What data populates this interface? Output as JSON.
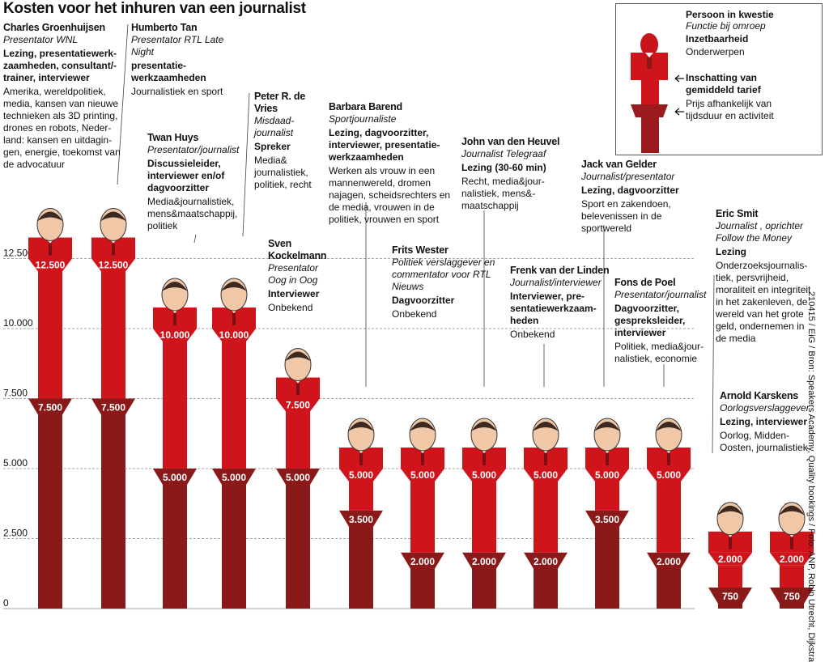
{
  "title": "Kosten voor het inhuren van een journalist",
  "credit": "210415 / EiG / Bron: Speakers Academy, Quality bookings / Foto: ANP, Robin Utrecht, Dijkstra",
  "colors": {
    "max": "#d0141c",
    "min": "#8a1a1a",
    "face": "#f0c8a8"
  },
  "legend": {
    "name": "Persoon in kwestie",
    "func": "Functie bij omroep",
    "avail": "Inzetbaarheid",
    "topics": "Onderwerpen",
    "avg": "Inschatting van gemiddeld tarief",
    "range": "Prijs afhankelijk van tijdsduur en activiteit"
  },
  "people": [
    {
      "name": "Charles Groenhuijsen",
      "func": "Presentator WNL",
      "avail": "Lezing, presentatiewerk­zaamheden, consultant/­trainer, interviewer",
      "topics": "Amerika, wereldpolitiek, media, kansen van nieuwe technieken als 3D printing, drones en robots, Neder­land: kansen en uitdagin­gen, energie, toekomst van de advocatuur"
    },
    {
      "name": "Humberto Tan",
      "func": "Presentator RTL Late Night",
      "avail": "presentatie­werkzaamheden",
      "topics": "Journalistiek en sport"
    },
    {
      "name": "Twan Huys",
      "func": "Presentator/journalist",
      "avail": "Discussieleider, interviewer en/of dagvoorzitter",
      "topics": "Media&journalistiek, mens&maatschap­pij, politiek"
    },
    {
      "name": "Peter R. de Vries",
      "func": "Misdaad­journalist",
      "avail": "Spreker",
      "topics": "Media& journalistiek, politiek, recht"
    },
    {
      "name": "Sven Kockelmann",
      "func": "Presentator Oog in Oog",
      "avail": "Interviewer",
      "topics": "Onbekend"
    },
    {
      "name": "Barbara Barend",
      "func": "Sportjournaliste",
      "avail": "Lezing, dagvoorzitter, interviewer, presentatie­werkzaamheden",
      "topics": "Werken als vrouw in een mannenwereld, dromen najagen, scheidsrechters en de media, vrouwen in de politiek, vrouwen en sport"
    },
    {
      "name": "Frits Wester",
      "func": "Politiek verslaggever en commentator voor RTL Nieuws",
      "avail": "Dagvoorzitter",
      "topics": "Onbekend"
    },
    {
      "name": "John van den Heuvel",
      "func": "Journalist Telegraaf",
      "avail": "Lezing (30-60 min)",
      "topics": "Recht, media&jour­nalistiek, mens&­maatschappij"
    },
    {
      "name": "Frenk van der Linden",
      "func": "Journalist/interviewer",
      "avail": "Interviewer, pre­sentatiewerkzaam­heden",
      "topics": "Onbekend"
    },
    {
      "name": "Jack van Gelder",
      "func": "Journalist/presentator",
      "avail": "Lezing, dagvoorzitter",
      "topics": "Sport en zakendoen, belevenissen in de sportwereld"
    },
    {
      "name": "Fons de Poel",
      "func": "Presentator/journalist",
      "avail": "Dagvoorzitter, gespreksleider, interviewer",
      "topics": "Politiek, media&jour­nalistiek, economie"
    },
    {
      "name": "Eric Smit",
      "func": "Journalist , oprichter Follow the Money",
      "avail": "Lezing",
      "topics": "Onderzoeksjournalis­tiek, persvrijheid, moraliteit en integriteit in het zakenleven, de wereld van het grote geld, ondernemen in de media"
    },
    {
      "name": "Arnold Karskens",
      "func": "Oorlogsverslaggever",
      "avail": "Lezing, interviewer",
      "topics": "Oorlog, Midden-Oosten, journalistiek"
    }
  ],
  "chart_data": {
    "type": "bar",
    "yticks": [
      "12.500",
      "10.000",
      "7.500",
      "5.000",
      "2.500",
      "0"
    ],
    "ylim": [
      0,
      13500
    ],
    "categories": [
      "Charles Groenhuijsen",
      "Humberto Tan",
      "Twan Huys",
      "Peter R. de Vries",
      "Sven Kockelmann",
      "Barbara Barend",
      "Frits Wester",
      "John van den Heuvel",
      "Frenk van der Linden",
      "Jack van Gelder",
      "Fons de Poel",
      "Eric Smit",
      "Arnold Karskens"
    ],
    "max_values": [
      12500,
      12500,
      10000,
      10000,
      7500,
      5000,
      5000,
      5000,
      5000,
      5000,
      5000,
      2000,
      2000
    ],
    "max_labels": [
      "12.500",
      "12.500",
      "10.000",
      "10.000",
      "7.500",
      "5.000",
      "5.000",
      "5.000",
      "5.000",
      "5.000",
      "5.000",
      "2.000",
      "2.000"
    ],
    "min_values": [
      7500,
      7500,
      5000,
      5000,
      5000,
      3500,
      2000,
      2000,
      2000,
      3500,
      2000,
      750,
      750
    ],
    "min_labels": [
      "7.500",
      "7.500",
      "5.000",
      "5.000",
      "5.000",
      "3.500",
      "2.000",
      "2.000",
      "2.000",
      "3.500",
      "2.000",
      "750",
      "750"
    ]
  }
}
